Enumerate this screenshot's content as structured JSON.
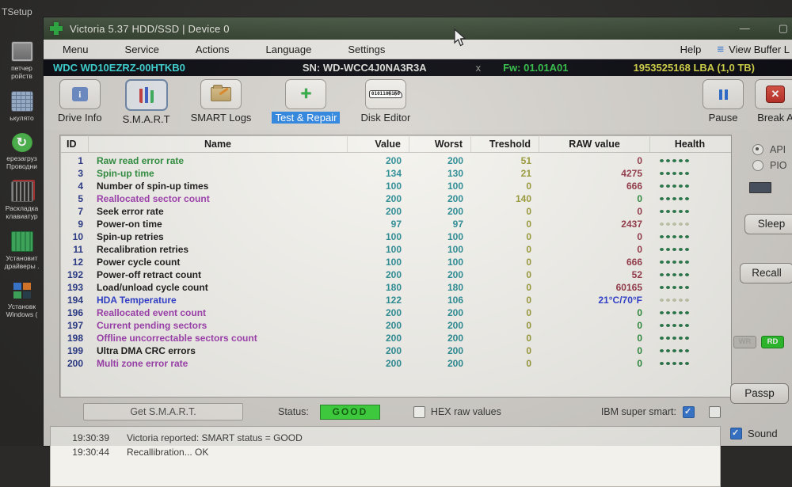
{
  "desktop": {
    "top_label": "TSetup",
    "icons": [
      {
        "name": "device-manager-icon",
        "glyph": "ic-devmgr",
        "label": "петчер\nройств"
      },
      {
        "name": "calculator-icon",
        "glyph": "ic-calc",
        "label": "ькулято"
      },
      {
        "name": "restart-explorer-icon",
        "glyph": "ic-refresh",
        "label": "ерезагруз\nПроводни"
      },
      {
        "name": "keyboard-layout-icon",
        "glyph": "ic-keyboard",
        "label": "Раскладка\nклавиатур"
      },
      {
        "name": "install-drivers-icon",
        "glyph": "ic-board",
        "label": "Установит\nдрайверы ."
      },
      {
        "name": "windows-setup-icon",
        "glyph": "ic-winsetup",
        "label": "Установк\nWindows ("
      }
    ]
  },
  "window": {
    "title": "Victoria 5.37 HDD/SSD | Device 0",
    "minimize": "—",
    "maximize": "▢",
    "menu": [
      "Menu",
      "Service",
      "Actions",
      "Language",
      "Settings"
    ],
    "help_label": "Help",
    "view_buffer_label": "View Buffer L"
  },
  "drive_bar": {
    "model": "WDC WD10EZRZ-00HTKB0",
    "serial": "SN: WD-WCC4J0NA3R3A",
    "close": "x",
    "firmware": "Fw: 01.01A01",
    "capacity": "1953525168 LBA (1,0 TB)"
  },
  "toolbar": [
    {
      "label": "Drive Info",
      "icon": "ic-driveinfo",
      "pressed": false,
      "highlight": false
    },
    {
      "label": "S.M.A.R.T",
      "icon": "ic-smart",
      "pressed": true,
      "highlight": false
    },
    {
      "label": "SMART Logs",
      "icon": "ic-logs",
      "pressed": false,
      "highlight": false
    },
    {
      "label": "Test & Repair",
      "icon": "ic-repair",
      "pressed": false,
      "highlight": true
    },
    {
      "label": "Disk Editor",
      "icon": "ic-editor",
      "pressed": false,
      "highlight": false
    }
  ],
  "toolbar_right": {
    "pause_label": "Pause",
    "break_label": "Break A"
  },
  "smart_table": {
    "columns": [
      "ID",
      "Name",
      "Value",
      "Worst",
      "Treshold",
      "RAW value",
      "Health"
    ],
    "rows": [
      {
        "id": "1",
        "name": "Raw read error rate",
        "name_color": "green",
        "value": "200",
        "worst": "200",
        "treshold": "51",
        "raw": "0",
        "raw_color": "red",
        "health": "good"
      },
      {
        "id": "3",
        "name": "Spin-up time",
        "name_color": "green",
        "value": "134",
        "worst": "130",
        "treshold": "21",
        "raw": "4275",
        "raw_color": "red",
        "health": "good"
      },
      {
        "id": "4",
        "name": "Number of spin-up times",
        "name_color": "black",
        "value": "100",
        "worst": "100",
        "treshold": "0",
        "raw": "666",
        "raw_color": "red",
        "health": "good"
      },
      {
        "id": "5",
        "name": "Reallocated sector count",
        "name_color": "purple",
        "value": "200",
        "worst": "200",
        "treshold": "140",
        "raw": "0",
        "raw_color": "green",
        "health": "good"
      },
      {
        "id": "7",
        "name": "Seek error rate",
        "name_color": "black",
        "value": "200",
        "worst": "200",
        "treshold": "0",
        "raw": "0",
        "raw_color": "red",
        "health": "good"
      },
      {
        "id": "9",
        "name": "Power-on time",
        "name_color": "black",
        "value": "97",
        "worst": "97",
        "treshold": "0",
        "raw": "2437",
        "raw_color": "red",
        "health": "faded"
      },
      {
        "id": "10",
        "name": "Spin-up retries",
        "name_color": "black",
        "value": "100",
        "worst": "100",
        "treshold": "0",
        "raw": "0",
        "raw_color": "red",
        "health": "good"
      },
      {
        "id": "11",
        "name": "Recalibration retries",
        "name_color": "black",
        "value": "100",
        "worst": "100",
        "treshold": "0",
        "raw": "0",
        "raw_color": "red",
        "health": "good"
      },
      {
        "id": "12",
        "name": "Power cycle count",
        "name_color": "black",
        "value": "100",
        "worst": "100",
        "treshold": "0",
        "raw": "666",
        "raw_color": "red",
        "health": "good"
      },
      {
        "id": "192",
        "name": "Power-off retract count",
        "name_color": "black",
        "value": "200",
        "worst": "200",
        "treshold": "0",
        "raw": "52",
        "raw_color": "red",
        "health": "good"
      },
      {
        "id": "193",
        "name": "Load/unload cycle count",
        "name_color": "black",
        "value": "180",
        "worst": "180",
        "treshold": "0",
        "raw": "60165",
        "raw_color": "red",
        "health": "good"
      },
      {
        "id": "194",
        "name": "HDA Temperature",
        "name_color": "blue",
        "value": "122",
        "worst": "106",
        "treshold": "0",
        "raw": "21°C/70°F",
        "raw_color": "blue",
        "health": "faded"
      },
      {
        "id": "196",
        "name": "Reallocated event count",
        "name_color": "purple",
        "value": "200",
        "worst": "200",
        "treshold": "0",
        "raw": "0",
        "raw_color": "green",
        "health": "good"
      },
      {
        "id": "197",
        "name": "Current pending sectors",
        "name_color": "purple",
        "value": "200",
        "worst": "200",
        "treshold": "0",
        "raw": "0",
        "raw_color": "green",
        "health": "good"
      },
      {
        "id": "198",
        "name": "Offline uncorrectable sectors count",
        "name_color": "purple",
        "value": "200",
        "worst": "200",
        "treshold": "0",
        "raw": "0",
        "raw_color": "green",
        "health": "good"
      },
      {
        "id": "199",
        "name": "Ultra DMA CRC errors",
        "name_color": "black",
        "value": "200",
        "worst": "200",
        "treshold": "0",
        "raw": "0",
        "raw_color": "green",
        "health": "good"
      },
      {
        "id": "200",
        "name": "Multi zone error rate",
        "name_color": "purple",
        "value": "200",
        "worst": "200",
        "treshold": "0",
        "raw": "0",
        "raw_color": "green",
        "health": "good"
      }
    ]
  },
  "bottom_bar": {
    "get_smart_label": "Get S.M.A.R.T.",
    "status_label": "Status:",
    "status_value": "GOOD",
    "hex_label": "HEX raw values",
    "ibm_label": "IBM super smart:"
  },
  "side_panel": {
    "api_label": "API",
    "pio_label": "PIO",
    "sleep_label": "Sleep",
    "recall_label": "Recall",
    "wr_label": "WR",
    "rd_label": "RD",
    "passp_label": "Passp",
    "sound_label": "Sound"
  },
  "log": [
    {
      "time": "19:30:39",
      "message": "Victoria reported: SMART status = GOOD"
    },
    {
      "time": "19:30:44",
      "message": "Recallibration... OK"
    }
  ],
  "colors": {
    "tab_highlight": "#2e86e0",
    "status_good_bg": "#3ed63e",
    "value_teal": "#2a8c94",
    "treshold_olive": "#9a9a3a",
    "health_dot_green": "#2c7a4c",
    "health_dot_faded": "#c2c8ae",
    "model_cyan": "#3fd6d6",
    "firmware_green": "#35c24a",
    "capacity_yellow": "#d6d64a",
    "name": {
      "green": "#2e8f3e",
      "purple": "#a040b0",
      "blue": "#2f3fd0",
      "black": "#1c1c1c"
    },
    "raw": {
      "red": "#963a4a",
      "green": "#2e8f3e",
      "blue": "#2f3fd0"
    }
  }
}
